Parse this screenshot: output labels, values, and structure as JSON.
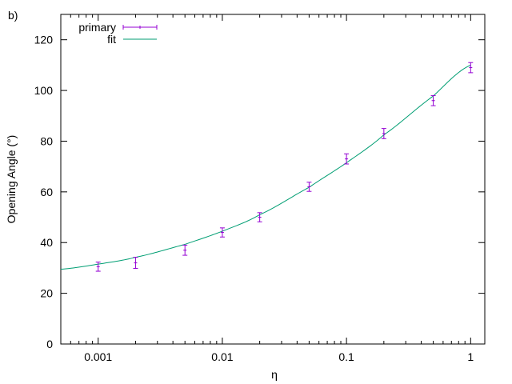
{
  "panel_label": "b)",
  "chart_data": {
    "type": "scatter",
    "xlabel": "η",
    "ylabel": "Opening Angle (°)",
    "xscale": "log",
    "xlim": [
      0.0005,
      1.3
    ],
    "ylim": [
      0,
      130
    ],
    "xticks": [
      {
        "value": 0.001,
        "label": "0.001"
      },
      {
        "value": 0.01,
        "label": "0.01"
      },
      {
        "value": 0.1,
        "label": "0.1"
      },
      {
        "value": 1,
        "label": "1"
      }
    ],
    "yticks": [
      {
        "value": 0,
        "label": "0"
      },
      {
        "value": 20,
        "label": "20"
      },
      {
        "value": 40,
        "label": "40"
      },
      {
        "value": 60,
        "label": "60"
      },
      {
        "value": 80,
        "label": "80"
      },
      {
        "value": 100,
        "label": "100"
      },
      {
        "value": 120,
        "label": "120"
      }
    ],
    "grid": false,
    "legend_position": "top-left",
    "series": [
      {
        "name": "primary",
        "kind": "errorbars",
        "color": "#9400d3",
        "points": [
          {
            "x": 0.001,
            "y": 30.5,
            "err": 1.8
          },
          {
            "x": 0.002,
            "y": 32.0,
            "err": 2.2
          },
          {
            "x": 0.005,
            "y": 37.0,
            "err": 2.0
          },
          {
            "x": 0.01,
            "y": 44.0,
            "err": 1.8
          },
          {
            "x": 0.02,
            "y": 50.0,
            "err": 1.8
          },
          {
            "x": 0.05,
            "y": 62.0,
            "err": 1.8
          },
          {
            "x": 0.1,
            "y": 73.0,
            "err": 2.0
          },
          {
            "x": 0.2,
            "y": 83.0,
            "err": 2.0
          },
          {
            "x": 0.5,
            "y": 96.0,
            "err": 2.0
          },
          {
            "x": 1.0,
            "y": 109.0,
            "err": 2.0
          }
        ]
      },
      {
        "name": "fit",
        "kind": "line",
        "color": "#009e73",
        "x": [
          0.0005,
          0.001,
          0.002,
          0.005,
          0.01,
          0.02,
          0.05,
          0.1,
          0.2,
          0.5,
          1.0
        ],
        "y": [
          29.5,
          31.5,
          34.2,
          39.3,
          44.5,
          51.0,
          61.8,
          71.5,
          82.5,
          97.8,
          110.0
        ]
      }
    ]
  }
}
